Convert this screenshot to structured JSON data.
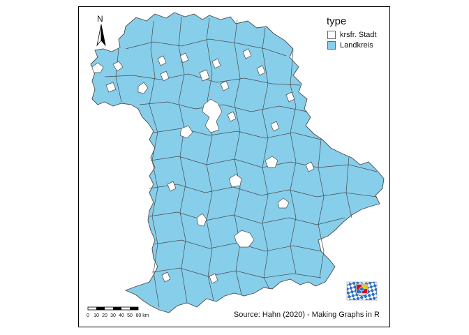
{
  "legend": {
    "title": "type",
    "items": [
      {
        "label": "krsfr. Stadt",
        "color": "#ffffff"
      },
      {
        "label": "Landkreis",
        "color": "#87ceeb"
      }
    ]
  },
  "north_arrow": {
    "label": "N"
  },
  "scale_bar": {
    "ticks": [
      "0",
      "10",
      "20",
      "30",
      "40",
      "50",
      "60 km"
    ]
  },
  "caption": "Source: Hahn (2020) - Making Graphs in R",
  "colors": {
    "landkreis": "#87ceeb",
    "stadt": "#ffffff",
    "border": "#4a4a4a",
    "flag_blue": "#2b73c7"
  }
}
